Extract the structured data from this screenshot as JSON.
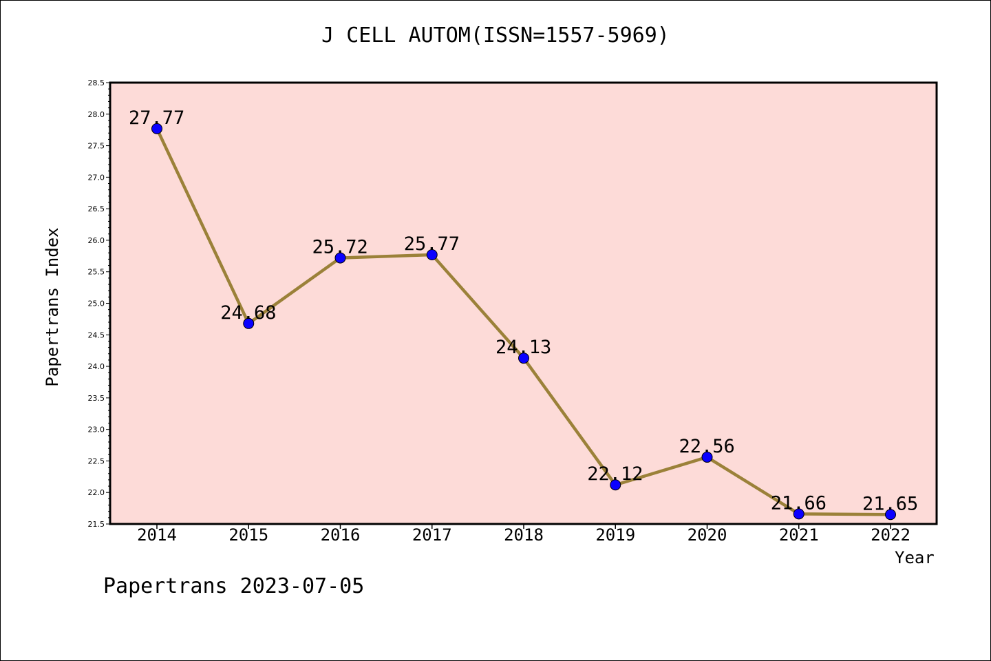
{
  "colors": {
    "plot_background": "#fddbd8",
    "line": "#9b8139",
    "marker": "#0a00ff",
    "axis": "#000000"
  },
  "footer": "Papertrans 2023-07-05",
  "chart_data": {
    "type": "line",
    "title": "J CELL AUTOM(ISSN=1557-5969)",
    "xlabel": "Year",
    "ylabel": "Papertrans Index",
    "ylim": [
      21.5,
      28.5
    ],
    "ytick_step": 0.5,
    "yticks": [
      "21.5",
      "22.0",
      "22.5",
      "23.0",
      "23.5",
      "24.0",
      "24.5",
      "25.0",
      "25.5",
      "26.0",
      "26.5",
      "27.0",
      "27.5",
      "28.0",
      "28.5"
    ],
    "categories": [
      "2014",
      "2015",
      "2016",
      "2017",
      "2018",
      "2019",
      "2020",
      "2021",
      "2022"
    ],
    "values": [
      27.77,
      24.68,
      25.72,
      25.77,
      24.13,
      22.12,
      22.56,
      21.66,
      21.65
    ],
    "data_labels": [
      "27.77",
      "24.68",
      "25.72",
      "25.77",
      "24.13",
      "22.12",
      "22.56",
      "21.66",
      "21.65"
    ],
    "grid": false,
    "legend": "none"
  }
}
